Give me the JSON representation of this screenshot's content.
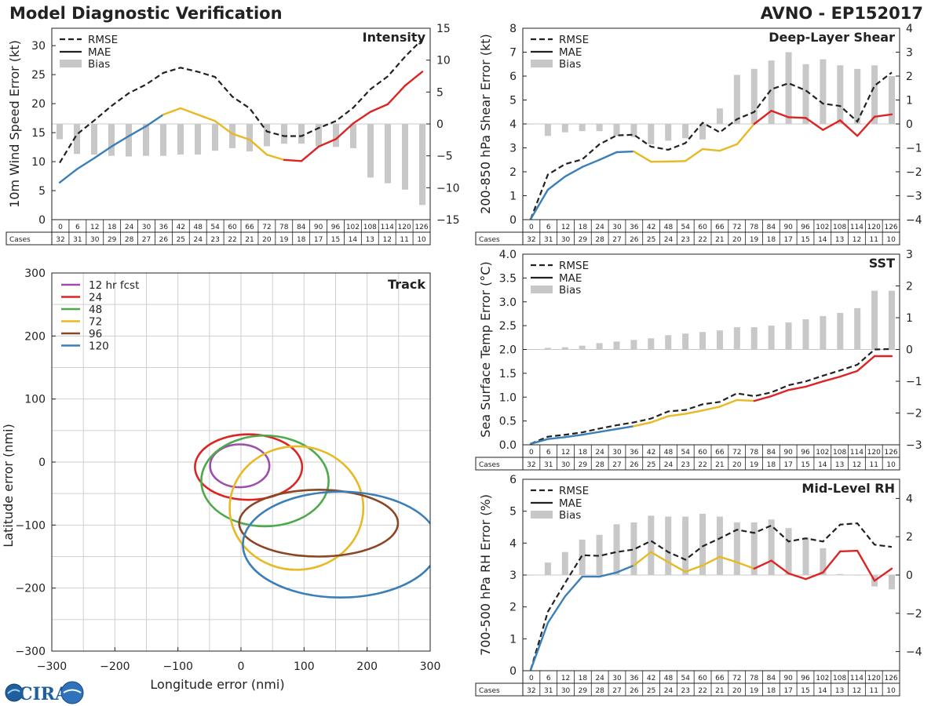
{
  "header": {
    "title": "Model Diagnostic Verification",
    "model_storm": "AVNO - EP152017"
  },
  "logo": {
    "text": "CIRA"
  },
  "colors": {
    "rmse": "#222222",
    "bias": "#c8c8c8",
    "grid": "#cfcfcf",
    "seg_0_36": "#3a7fb8",
    "seg_36_78": "#e8b923",
    "seg_78_126": "#dd2424",
    "track_12": "#9b4fa8",
    "track_24": "#dd2424",
    "track_48": "#4caa4c",
    "track_72": "#e8b923",
    "track_96": "#8b4724",
    "track_120": "#3a7fb8"
  },
  "chart_data": [
    {
      "id": "intensity",
      "type": "line",
      "title": "Intensity",
      "ylabel": "10m Wind Speed Error (kt)",
      "ylim": [
        0,
        33
      ],
      "yticks": [
        0,
        5,
        10,
        15,
        20,
        25,
        30
      ],
      "y2lim": [
        -15,
        15
      ],
      "y2ticks": [
        -15,
        -10,
        -5,
        0,
        5,
        10,
        15
      ],
      "legend": [
        "RMSE",
        "MAE",
        "Bias"
      ],
      "legend_position": "top-left",
      "hours": [
        0,
        6,
        12,
        18,
        24,
        30,
        36,
        42,
        48,
        54,
        60,
        66,
        72,
        78,
        84,
        90,
        96,
        102,
        108,
        114,
        120,
        126
      ],
      "cases_label": "Cases",
      "cases": [
        32,
        31,
        30,
        29,
        28,
        27,
        26,
        25,
        24,
        23,
        22,
        21,
        20,
        19,
        18,
        17,
        15,
        14,
        13,
        12,
        11,
        10
      ],
      "rmse": [
        9.8,
        14.7,
        17.1,
        19.6,
        21.8,
        23.3,
        25.3,
        26.2,
        25.5,
        24.6,
        21.2,
        19.2,
        15.2,
        14.4,
        14.4,
        15.8,
        17.0,
        19.3,
        22.5,
        24.7,
        28.1,
        31.1
      ],
      "mae": [
        6.4,
        8.7,
        10.6,
        12.6,
        14.4,
        16.1,
        18.1,
        19.2,
        18.1,
        17.0,
        14.8,
        13.8,
        11.2,
        10.3,
        10.1,
        12.6,
        13.9,
        16.6,
        18.6,
        19.9,
        23.1,
        25.5
      ],
      "bias": [
        -2.4,
        -4.7,
        -4.8,
        -5.0,
        -5.1,
        -5.0,
        -5.0,
        -4.8,
        -4.8,
        -4.2,
        -3.8,
        -4.3,
        -3.5,
        -3.1,
        -3.1,
        -3.5,
        -3.6,
        -3.8,
        -8.4,
        -9.3,
        -10.3,
        -12.7
      ]
    },
    {
      "id": "shear",
      "type": "line",
      "title": "Deep-Layer Shear",
      "ylabel": "200-850 hPa Shear Error (kt)",
      "ylim": [
        0,
        8
      ],
      "yticks": [
        0,
        1,
        2,
        3,
        4,
        5,
        6,
        7,
        8
      ],
      "y2lim": [
        -4,
        4
      ],
      "y2ticks": [
        -4,
        -3,
        -2,
        -1,
        0,
        1,
        2,
        3,
        4
      ],
      "legend": [
        "RMSE",
        "MAE",
        "Bias"
      ],
      "legend_position": "top-left",
      "hours": [
        0,
        6,
        12,
        18,
        24,
        30,
        36,
        42,
        48,
        54,
        60,
        66,
        72,
        78,
        84,
        90,
        96,
        102,
        108,
        114,
        120,
        126
      ],
      "cases_label": "Cases",
      "cases": [
        32,
        31,
        30,
        29,
        28,
        27,
        26,
        25,
        24,
        23,
        22,
        21,
        20,
        19,
        18,
        17,
        15,
        14,
        13,
        12,
        11,
        10
      ],
      "rmse": [
        0.02,
        1.88,
        2.32,
        2.52,
        3.15,
        3.52,
        3.55,
        3.05,
        2.92,
        3.2,
        4.05,
        3.65,
        4.2,
        4.5,
        5.45,
        5.7,
        5.4,
        4.85,
        4.75,
        4.1,
        5.6,
        6.15
      ],
      "mae": [
        0.02,
        1.25,
        1.8,
        2.2,
        2.5,
        2.82,
        2.85,
        2.42,
        2.43,
        2.45,
        2.95,
        2.88,
        3.15,
        4.0,
        4.55,
        4.28,
        4.25,
        3.75,
        4.15,
        3.5,
        4.3,
        4.4
      ],
      "bias": [
        0.0,
        -0.5,
        -0.35,
        -0.3,
        -0.3,
        -0.5,
        -0.55,
        -0.85,
        -0.7,
        -0.6,
        -0.65,
        0.65,
        2.05,
        2.3,
        2.65,
        3.0,
        2.5,
        2.7,
        2.45,
        2.3,
        2.45,
        2.0
      ]
    },
    {
      "id": "sst",
      "type": "line",
      "title": "SST",
      "ylabel": "Sea Surface Temp Error (°C)",
      "ylim": [
        0,
        4.0
      ],
      "yticks": [
        0.0,
        0.5,
        1.0,
        1.5,
        2.0,
        2.5,
        3.0,
        3.5,
        4.0
      ],
      "y2lim": [
        -3,
        3
      ],
      "y2ticks": [
        -3,
        -2,
        -1,
        0,
        1,
        2,
        3
      ],
      "legend": [
        "RMSE",
        "MAE",
        "Bias"
      ],
      "legend_position": "top-left",
      "hours": [
        0,
        6,
        12,
        18,
        24,
        30,
        36,
        42,
        48,
        54,
        60,
        66,
        72,
        78,
        84,
        90,
        96,
        102,
        108,
        114,
        120,
        126
      ],
      "cases_label": "Cases",
      "cases": [
        32,
        31,
        30,
        29,
        28,
        27,
        26,
        25,
        24,
        23,
        22,
        21,
        20,
        19,
        18,
        17,
        15,
        14,
        13,
        12,
        11,
        10
      ],
      "rmse": [
        0.02,
        0.17,
        0.21,
        0.26,
        0.34,
        0.41,
        0.47,
        0.55,
        0.7,
        0.73,
        0.85,
        0.9,
        1.08,
        1.02,
        1.1,
        1.25,
        1.33,
        1.45,
        1.56,
        1.68,
        2.0,
        2.01
      ],
      "mae": [
        0.02,
        0.12,
        0.16,
        0.21,
        0.27,
        0.33,
        0.39,
        0.47,
        0.6,
        0.65,
        0.72,
        0.8,
        0.94,
        0.92,
        1.02,
        1.15,
        1.22,
        1.33,
        1.43,
        1.55,
        1.86,
        1.86
      ],
      "bias": [
        0.0,
        0.05,
        0.07,
        0.12,
        0.2,
        0.25,
        0.3,
        0.35,
        0.45,
        0.5,
        0.55,
        0.6,
        0.7,
        0.7,
        0.75,
        0.85,
        0.95,
        1.05,
        1.15,
        1.3,
        1.85,
        1.85
      ]
    },
    {
      "id": "rh",
      "type": "line",
      "title": "Mid-Level RH",
      "ylabel": "700-500 hPa RH Error (%)",
      "ylim": [
        0,
        6
      ],
      "yticks": [
        0,
        1,
        2,
        3,
        4,
        5,
        6
      ],
      "y2lim": [
        -5,
        5
      ],
      "y2ticks": [
        -4,
        -2,
        0,
        2,
        4
      ],
      "legend": [
        "RMSE",
        "MAE",
        "Bias"
      ],
      "legend_position": "top-left",
      "hours": [
        0,
        6,
        12,
        18,
        24,
        30,
        36,
        42,
        48,
        54,
        60,
        66,
        72,
        78,
        84,
        90,
        96,
        102,
        108,
        114,
        120,
        126
      ],
      "cases_label": "Cases",
      "cases": [
        32,
        31,
        30,
        29,
        28,
        27,
        26,
        25,
        24,
        23,
        22,
        21,
        20,
        19,
        18,
        17,
        15,
        14,
        13,
        12,
        11,
        10
      ],
      "rmse": [
        0.02,
        1.85,
        2.75,
        3.62,
        3.6,
        3.72,
        3.8,
        4.07,
        3.72,
        3.48,
        3.9,
        4.15,
        4.42,
        4.32,
        4.55,
        4.05,
        4.15,
        4.05,
        4.58,
        4.62,
        3.95,
        3.88
      ],
      "mae": [
        0.02,
        1.5,
        2.33,
        2.95,
        2.95,
        3.08,
        3.3,
        3.72,
        3.4,
        3.1,
        3.3,
        3.57,
        3.4,
        3.2,
        3.45,
        3.05,
        2.87,
        3.08,
        3.74,
        3.76,
        2.82,
        3.2
      ],
      "bias": [
        0.0,
        0.65,
        1.2,
        1.85,
        2.1,
        2.65,
        2.75,
        3.1,
        3.05,
        3.05,
        3.2,
        3.05,
        2.75,
        2.75,
        2.9,
        2.45,
        1.95,
        1.4,
        0.05,
        0.0,
        -0.6,
        -0.75
      ]
    },
    {
      "id": "track",
      "type": "scatter",
      "title": "Track",
      "xlabel": "Longitude error (nmi)",
      "ylabel": "Latitude error (nmi)",
      "xlim": [
        -300,
        300
      ],
      "ylim": [
        -300,
        300
      ],
      "xticks": [
        -300,
        -200,
        -100,
        0,
        100,
        200,
        300
      ],
      "yticks": [
        -300,
        -200,
        -100,
        0,
        100,
        200,
        300
      ],
      "legend_position": "top-left",
      "series": [
        {
          "name": "12 hr fcst",
          "cx": -2,
          "cy": -6,
          "rx": 47,
          "ry": 34
        },
        {
          "name": "24",
          "cx": 12,
          "cy": -8,
          "rx": 85,
          "ry": 52
        },
        {
          "name": "48",
          "cx": 38,
          "cy": -30,
          "rx": 101,
          "ry": 72
        },
        {
          "name": "72",
          "cx": 88,
          "cy": -73,
          "rx": 106,
          "ry": 98
        },
        {
          "name": "96",
          "cx": 123,
          "cy": -97,
          "rx": 126,
          "ry": 53
        },
        {
          "name": "120",
          "cx": 158,
          "cy": -131,
          "rx": 155,
          "ry": 84
        }
      ]
    }
  ]
}
